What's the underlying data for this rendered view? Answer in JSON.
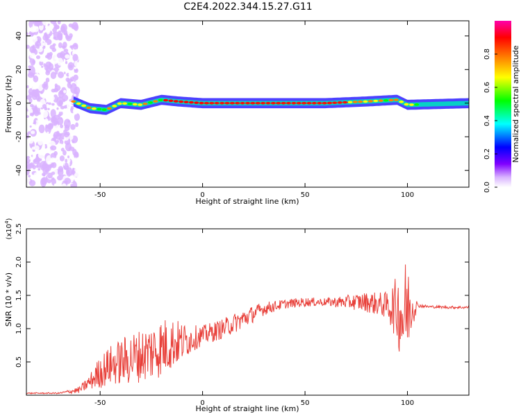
{
  "title": "C2E4.2022.344.15.27.G11",
  "chart_data": [
    {
      "type": "heatmap",
      "xlabel": "Height of straight line (km)",
      "ylabel": "Frequency (Hz)",
      "xlim": [
        -86,
        130
      ],
      "ylim": [
        -50,
        49
      ],
      "x_ticks": [
        -50,
        0,
        50,
        100
      ],
      "y_ticks": [
        -40,
        -20,
        0,
        20,
        40
      ],
      "colorbar": {
        "label": "Normalized spectral amplitude",
        "range": [
          0,
          1
        ],
        "ticks": [
          "0.0",
          "0.2",
          "0.4",
          "0.6",
          "0.8"
        ],
        "colors": [
          "#ffffff",
          "#d9b3ff",
          "#8000ff",
          "#0000ff",
          "#00ffff",
          "#00ff00",
          "#ffff00",
          "#ff8000",
          "#ff0000",
          "#ff00aa"
        ]
      },
      "band_centerline": [
        {
          "x": -63,
          "y": 1
        },
        {
          "x": -55,
          "y": -3
        },
        {
          "x": -47,
          "y": -4
        },
        {
          "x": -40,
          "y": 0
        },
        {
          "x": -30,
          "y": -1
        },
        {
          "x": -20,
          "y": 2
        },
        {
          "x": -12,
          "y": 1
        },
        {
          "x": 0,
          "y": 0
        },
        {
          "x": 30,
          "y": 0
        },
        {
          "x": 60,
          "y": 0
        },
        {
          "x": 80,
          "y": 1
        },
        {
          "x": 95,
          "y": 2
        },
        {
          "x": 100,
          "y": -1
        },
        {
          "x": 130,
          "y": 0
        }
      ],
      "band_halfwidth_hz": 3,
      "noise_region_x": [
        -86,
        -63
      ]
    },
    {
      "type": "line",
      "xlabel": "Height of straight line (km)",
      "ylabel": "SNR (10 * v/v)",
      "y_multiplier": "(x10",
      "y_multiplier_exp": "4",
      "y_multiplier_close": ")",
      "xlim": [
        -86,
        130
      ],
      "ylim": [
        0,
        2.5
      ],
      "x_ticks": [
        -50,
        0,
        50,
        100
      ],
      "y_ticks": [
        "0.5",
        "1.0",
        "1.5",
        "2.0",
        "2.5"
      ],
      "color": "#e8403a",
      "series": [
        {
          "x": [
            -86,
            -70,
            -60,
            -55,
            -50,
            -45,
            -40,
            -35,
            -30,
            -25,
            -20,
            -15,
            -10,
            -5,
            0,
            10,
            20,
            30,
            40,
            50,
            60,
            70,
            80,
            90,
            95,
            98,
            100,
            102,
            105,
            110,
            120,
            130
          ],
          "y": [
            0.03,
            0.03,
            0.08,
            0.2,
            0.35,
            0.45,
            0.5,
            0.55,
            0.6,
            0.65,
            0.72,
            0.78,
            0.8,
            0.85,
            0.9,
            1.0,
            1.15,
            1.3,
            1.37,
            1.4,
            1.4,
            1.4,
            1.4,
            1.35,
            1.3,
            1.2,
            1.3,
            1.35,
            1.35,
            1.33,
            1.32,
            1.32
          ],
          "amplitude": [
            0.01,
            0.01,
            0.05,
            0.12,
            0.25,
            0.3,
            0.35,
            0.4,
            0.4,
            0.45,
            0.45,
            0.4,
            0.3,
            0.2,
            0.15,
            0.15,
            0.15,
            0.1,
            0.07,
            0.07,
            0.06,
            0.1,
            0.15,
            0.2,
            0.5,
            0.9,
            0.7,
            0.4,
            0.03,
            0.02,
            0.02,
            0.02
          ]
        }
      ]
    }
  ]
}
